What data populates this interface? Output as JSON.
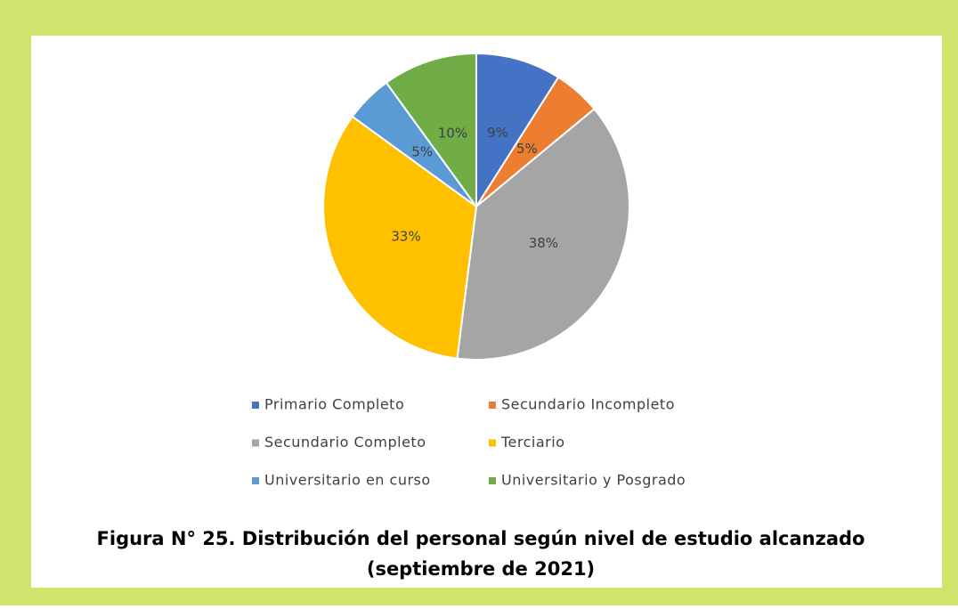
{
  "chart_data": {
    "type": "pie",
    "title": "Figura N° 25. Distribución del personal según nivel de estudio alcanzado",
    "subtitle": "(septiembre de 2021)",
    "categories": [
      "Primario Completo",
      "Secundario Incompleto",
      "Secundario Completo",
      "Terciario",
      "Universitario en curso",
      "Universitario y Posgrado"
    ],
    "values": [
      9,
      5,
      38,
      33,
      5,
      10
    ],
    "value_labels": [
      "9%",
      "5%",
      "38%",
      "33%",
      "5%",
      "10%"
    ],
    "colors": [
      "#4472c4",
      "#ed7d31",
      "#a5a5a5",
      "#ffc000",
      "#5b9bd5",
      "#70ad47"
    ],
    "legend": "bottom"
  }
}
